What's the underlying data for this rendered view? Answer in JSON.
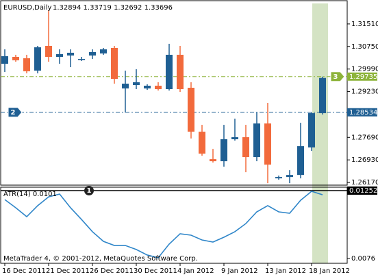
{
  "chart_data": [
    {
      "type": "candlestick",
      "title": "EURUSD,Daily",
      "subtitle": "1.32894 1.33719 1.32692 1.33696",
      "categories": [
        "16 Dec 2011",
        null,
        null,
        null,
        "21 Dec 2011",
        null,
        null,
        null,
        "26 Dec 2011",
        null,
        null,
        null,
        "30 Dec 2011",
        null,
        null,
        null,
        "4 Jan 2012",
        null,
        null,
        null,
        "9 Jan 2012",
        null,
        null,
        null,
        "13 Jan 2012",
        null,
        null,
        null,
        "18 Jan 2012",
        null
      ],
      "open": [
        1.30169,
        1.304,
        1.30354,
        1.29938,
        1.3077,
        1.304,
        1.30447,
        1.30308,
        1.30447,
        1.30516,
        1.30701,
        1.29337,
        1.29452,
        1.29337,
        1.29429,
        1.29313,
        1.3047,
        1.2936,
        1.2788,
        1.26955,
        1.26886,
        1.27626,
        1.27695,
        1.27025,
        1.28157,
        1.26308,
        1.26354,
        1.26423,
        1.27348,
        1.28504
      ],
      "high": [
        1.30655,
        1.3047,
        1.3047,
        1.3077,
        1.31972,
        1.30655,
        1.30655,
        1.304,
        1.30655,
        1.30701,
        1.3077,
        1.29937,
        1.29985,
        1.29475,
        1.29545,
        1.3084,
        1.3077,
        1.29545,
        1.28111,
        1.27301,
        1.28111,
        1.28319,
        1.28111,
        1.28527,
        1.28851,
        1.264,
        1.26585,
        1.2818,
        1.28527,
        1.29735
      ],
      "low": [
        1.29892,
        1.30238,
        1.29846,
        1.29846,
        1.30238,
        1.30169,
        1.30053,
        1.30262,
        1.30331,
        1.3047,
        1.29498,
        1.28527,
        1.29313,
        1.2929,
        1.29267,
        1.29267,
        1.29221,
        1.2765,
        1.2707,
        1.2684,
        1.26701,
        1.2758,
        1.26516,
        1.26886,
        1.26146,
        1.26262,
        1.26146,
        1.26308,
        1.27232,
        1.28458
      ],
      "close": [
        1.30423,
        1.30285,
        1.29915,
        1.30724,
        1.304,
        1.30493,
        1.30539,
        1.30331,
        1.30562,
        1.30655,
        1.2966,
        1.29498,
        1.29545,
        1.29429,
        1.29313,
        1.3047,
        1.29313,
        1.2788,
        1.2714,
        1.26886,
        1.27626,
        1.27695,
        1.27025,
        1.28157,
        1.2677,
        1.26354,
        1.26423,
        1.27394,
        1.28504,
        1.2969
      ],
      "up_color": "#1f5f93",
      "down_color": "#f26a3c",
      "ylim": [
        1.2608,
        1.3227
      ],
      "yticks": [
        {
          "value": 1.3151,
          "label": "1.31510"
        },
        {
          "value": 1.3075,
          "label": "1.30750"
        },
        {
          "value": 1.2999,
          "label": "1.29990"
        },
        {
          "value": 1.2923,
          "label": "1.29230"
        },
        {
          "value": 1.2769,
          "label": "1.27690"
        },
        {
          "value": 1.2693,
          "label": "1.26930"
        },
        {
          "value": 1.2617,
          "label": "1.26170"
        }
      ],
      "price_lines": [
        {
          "value": 1.29735,
          "marker": "3",
          "color": "#8db33a"
        },
        {
          "value": 1.28534,
          "marker": "2",
          "color": "#1f5f93"
        }
      ]
    },
    {
      "type": "line",
      "title": "ATR(14) 0.0101",
      "color": "#2f86c9",
      "values": [
        0.01187,
        0.01128,
        0.01063,
        0.01143,
        0.01207,
        0.01227,
        0.01128,
        0.01043,
        0.00954,
        0.00884,
        0.00854,
        0.00854,
        0.00825,
        0.00785,
        0.00765,
        0.00864,
        0.00939,
        0.00929,
        0.00894,
        0.00879,
        0.00914,
        0.00954,
        0.01013,
        0.01098,
        0.01143,
        0.01098,
        0.01088,
        0.01182,
        0.01247,
        0.01222
      ],
      "ylim": [
        0.00725,
        0.01277
      ],
      "yticks": [
        0.0076
      ],
      "level": {
        "value": 0.01252,
        "marker": "1"
      }
    }
  ],
  "footer": "MetaTrader 4, © 2001-2012, MetaQuotes Software Corp."
}
